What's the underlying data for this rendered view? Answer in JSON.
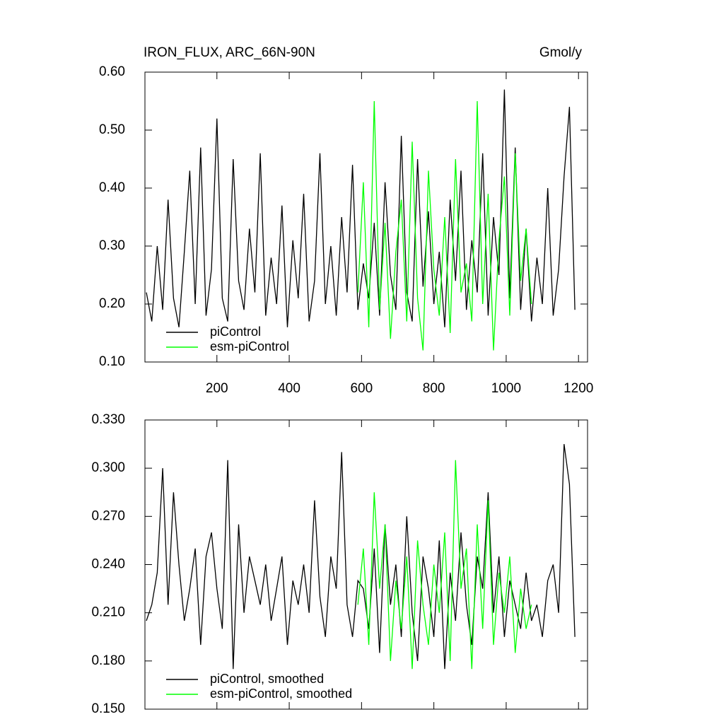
{
  "chart_data": [
    {
      "type": "line",
      "title": "IRON_FLUX, ARC_66N-90N",
      "subtitle": "Gmol/y",
      "xlim": [
        1,
        1225
      ],
      "xticks": [
        200,
        400,
        600,
        800,
        1000,
        1200
      ],
      "ylim": [
        0.1,
        0.6
      ],
      "yticks": [
        {
          "value": 0.1,
          "label": "0.10"
        },
        {
          "value": 0.2,
          "label": "0.20"
        },
        {
          "value": 0.3,
          "label": "0.30"
        },
        {
          "value": 0.4,
          "label": "0.40"
        },
        {
          "value": 0.5,
          "label": "0.50"
        },
        {
          "value": 0.6,
          "label": "0.60"
        }
      ],
      "legend": "lower-left",
      "series": [
        {
          "name": "piControl",
          "color": "#000000",
          "x": [
            5,
            20,
            35,
            50,
            65,
            80,
            95,
            110,
            125,
            140,
            155,
            170,
            185,
            200,
            215,
            230,
            245,
            260,
            275,
            290,
            305,
            320,
            335,
            350,
            365,
            380,
            395,
            410,
            425,
            440,
            455,
            470,
            485,
            500,
            515,
            530,
            545,
            560,
            575,
            590,
            605,
            620,
            635,
            650,
            665,
            680,
            695,
            710,
            725,
            740,
            755,
            770,
            785,
            800,
            815,
            830,
            845,
            860,
            875,
            890,
            905,
            920,
            935,
            950,
            965,
            980,
            995,
            1010,
            1025,
            1040,
            1055,
            1070,
            1085,
            1100,
            1115,
            1130,
            1145,
            1160,
            1175,
            1190
          ],
          "values": [
            0.22,
            0.17,
            0.3,
            0.19,
            0.38,
            0.21,
            0.16,
            0.29,
            0.43,
            0.2,
            0.47,
            0.18,
            0.26,
            0.52,
            0.21,
            0.17,
            0.45,
            0.24,
            0.19,
            0.33,
            0.22,
            0.46,
            0.18,
            0.28,
            0.2,
            0.37,
            0.16,
            0.31,
            0.21,
            0.39,
            0.17,
            0.24,
            0.46,
            0.2,
            0.3,
            0.18,
            0.35,
            0.22,
            0.44,
            0.19,
            0.27,
            0.21,
            0.34,
            0.18,
            0.41,
            0.25,
            0.19,
            0.49,
            0.22,
            0.17,
            0.45,
            0.23,
            0.36,
            0.2,
            0.29,
            0.16,
            0.38,
            0.24,
            0.43,
            0.19,
            0.31,
            0.22,
            0.46,
            0.18,
            0.35,
            0.25,
            0.57,
            0.21,
            0.47,
            0.19,
            0.33,
            0.17,
            0.28,
            0.2,
            0.4,
            0.18,
            0.26,
            0.42,
            0.54,
            0.19
          ]
        },
        {
          "name": "esm-piControl",
          "color": "#00ff00",
          "x": [
            590,
            605,
            620,
            635,
            650,
            665,
            680,
            695,
            710,
            725,
            740,
            755,
            770,
            785,
            800,
            815,
            830,
            845,
            860,
            875,
            890,
            905,
            920,
            935,
            950,
            965,
            980,
            995,
            1010,
            1025,
            1040,
            1055,
            1070
          ],
          "values": [
            0.22,
            0.41,
            0.16,
            0.55,
            0.19,
            0.34,
            0.14,
            0.29,
            0.38,
            0.17,
            0.48,
            0.21,
            0.12,
            0.43,
            0.26,
            0.18,
            0.35,
            0.15,
            0.45,
            0.22,
            0.27,
            0.17,
            0.55,
            0.2,
            0.39,
            0.12,
            0.31,
            0.42,
            0.18,
            0.46,
            0.24,
            0.33,
            0.2
          ]
        }
      ]
    },
    {
      "type": "line",
      "xlim": [
        1,
        1225
      ],
      "xticks": [
        200,
        400,
        600,
        800,
        1000,
        1200
      ],
      "ylim": [
        0.15,
        0.33
      ],
      "yticks": [
        {
          "value": 0.15,
          "label": "0.150"
        },
        {
          "value": 0.18,
          "label": "0.180"
        },
        {
          "value": 0.21,
          "label": "0.210"
        },
        {
          "value": 0.24,
          "label": "0.240"
        },
        {
          "value": 0.27,
          "label": "0.270"
        },
        {
          "value": 0.3,
          "label": "0.300"
        },
        {
          "value": 0.33,
          "label": "0.330"
        }
      ],
      "legend": "lower-left",
      "series": [
        {
          "name": "piControl, smoothed",
          "color": "#000000",
          "x": [
            5,
            20,
            35,
            50,
            65,
            80,
            95,
            110,
            125,
            140,
            155,
            170,
            185,
            200,
            215,
            230,
            245,
            260,
            275,
            290,
            305,
            320,
            335,
            350,
            365,
            380,
            395,
            410,
            425,
            440,
            455,
            470,
            485,
            500,
            515,
            530,
            545,
            560,
            575,
            590,
            605,
            620,
            635,
            650,
            665,
            680,
            695,
            710,
            725,
            740,
            755,
            770,
            785,
            800,
            815,
            830,
            845,
            860,
            875,
            890,
            905,
            920,
            935,
            950,
            965,
            980,
            995,
            1010,
            1025,
            1040,
            1055,
            1070,
            1085,
            1100,
            1115,
            1130,
            1145,
            1160,
            1175,
            1190
          ],
          "values": [
            0.205,
            0.215,
            0.235,
            0.3,
            0.215,
            0.285,
            0.24,
            0.205,
            0.225,
            0.25,
            0.19,
            0.245,
            0.26,
            0.225,
            0.2,
            0.305,
            0.175,
            0.265,
            0.21,
            0.245,
            0.23,
            0.215,
            0.24,
            0.205,
            0.225,
            0.245,
            0.19,
            0.23,
            0.215,
            0.24,
            0.21,
            0.28,
            0.22,
            0.195,
            0.245,
            0.225,
            0.31,
            0.215,
            0.195,
            0.23,
            0.225,
            0.2,
            0.25,
            0.185,
            0.265,
            0.215,
            0.24,
            0.195,
            0.27,
            0.21,
            0.18,
            0.245,
            0.225,
            0.195,
            0.255,
            0.175,
            0.235,
            0.205,
            0.26,
            0.215,
            0.19,
            0.245,
            0.225,
            0.285,
            0.21,
            0.245,
            0.195,
            0.23,
            0.215,
            0.2,
            0.235,
            0.205,
            0.215,
            0.195,
            0.23,
            0.24,
            0.21,
            0.315,
            0.29,
            0.195
          ]
        },
        {
          "name": "esm-piControl, smoothed",
          "color": "#00ff00",
          "x": [
            590,
            605,
            620,
            635,
            650,
            665,
            680,
            695,
            710,
            725,
            740,
            755,
            770,
            785,
            800,
            815,
            830,
            845,
            860,
            875,
            890,
            905,
            920,
            935,
            950,
            965,
            980,
            995,
            1010,
            1025,
            1040,
            1055,
            1070
          ],
          "values": [
            0.215,
            0.25,
            0.19,
            0.285,
            0.225,
            0.265,
            0.18,
            0.23,
            0.2,
            0.245,
            0.175,
            0.255,
            0.215,
            0.19,
            0.24,
            0.21,
            0.26,
            0.18,
            0.305,
            0.225,
            0.25,
            0.175,
            0.265,
            0.2,
            0.28,
            0.19,
            0.235,
            0.21,
            0.245,
            0.185,
            0.225,
            0.2,
            0.215
          ]
        }
      ]
    }
  ]
}
